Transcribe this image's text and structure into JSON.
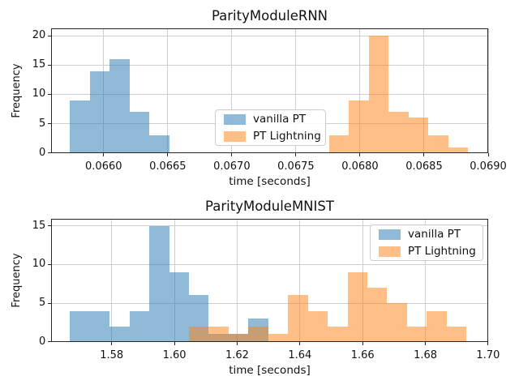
{
  "figure": {
    "background": "#ffffff",
    "text_color": "#111111",
    "grid_color": "#cfcfcf",
    "frame_color": "#262626",
    "bar_alpha": 0.5,
    "rendered_fill_colors": {
      "vanilla_pt": "#8fbbd9",
      "pt_lightning": "#ffbf86",
      "overlap": "#c79d74"
    }
  },
  "legend": {
    "items": [
      {
        "label": "vanilla PT",
        "color": "#1f77b4"
      },
      {
        "label": "PT Lightning",
        "color": "#ff7f0e"
      }
    ]
  },
  "chart_data": [
    {
      "type": "bar",
      "variant": "histogram",
      "title": "ParityModuleRNN",
      "xlabel": "time [seconds]",
      "ylabel": "Frequency",
      "xlim": [
        0.065592,
        0.069003
      ],
      "ylim": [
        0,
        21.29
      ],
      "xtick_labels": [
        "0.0660",
        "0.0665",
        "0.0670",
        "0.0675",
        "0.0680",
        "0.0685",
        "0.0690"
      ],
      "ytick_values": [
        0,
        5,
        10,
        15,
        20
      ],
      "grid": true,
      "legend_location": "center",
      "series": [
        {
          "name": "vanilla PT",
          "color": "#1f77b4",
          "alpha": 0.5,
          "bin_start": 0.065737,
          "bin_width": 0.0001551,
          "counts": [
            9,
            14,
            16,
            7,
            3
          ]
        },
        {
          "name": "PT Lightning",
          "color": "#ff7f0e",
          "alpha": 0.5,
          "bin_start": 0.067757,
          "bin_width": 0.0001551,
          "counts": [
            3,
            9,
            20,
            7,
            6,
            3,
            1
          ]
        }
      ]
    },
    {
      "type": "bar",
      "variant": "histogram",
      "title": "ParityModuleMNIST",
      "xlabel": "time [seconds]",
      "ylabel": "Frequency",
      "xlim": [
        1.56076,
        1.70015
      ],
      "ylim": [
        0,
        15.86
      ],
      "xtick_labels": [
        "1.58",
        "1.60",
        "1.62",
        "1.64",
        "1.66",
        "1.68",
        "1.70"
      ],
      "ytick_values": [
        0,
        5,
        10,
        15
      ],
      "grid": true,
      "legend_location": "upper right",
      "series": [
        {
          "name": "vanilla PT",
          "color": "#1f77b4",
          "alpha": 0.5,
          "bin_start": 1.5667,
          "bin_width": 0.00632,
          "counts": [
            4,
            4,
            2,
            4,
            15,
            9,
            6,
            1,
            1,
            3
          ]
        },
        {
          "name": "PT Lightning",
          "color": "#ff7f0e",
          "alpha": 0.5,
          "bin_start": 1.60462,
          "bin_width": 0.00632,
          "counts": [
            2,
            2,
            1,
            2,
            1,
            6,
            4,
            2,
            9,
            7,
            5,
            2,
            4,
            2
          ]
        }
      ]
    }
  ]
}
